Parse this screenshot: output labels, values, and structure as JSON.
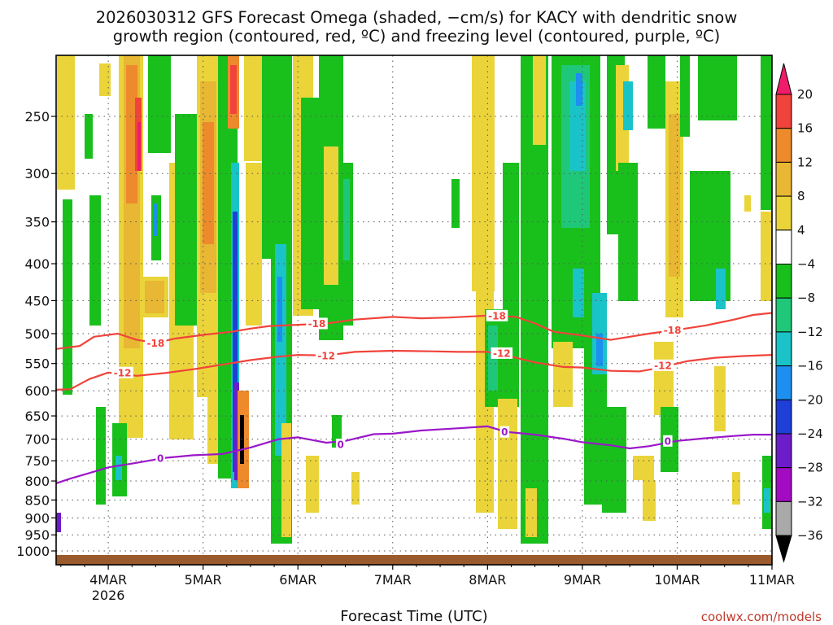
{
  "chart_data": {
    "type": "heatmap",
    "title_line1": "2026030312 GFS Forecast Omega (shaded, −cm/s) for KACY with dendritic snow",
    "title_line2": "growth region (contoured, red, ºC) and freezing level (contoured, purple, ºC)",
    "xlabel": "Forecast Time (UTC)",
    "credit": "coolwx.com/models",
    "x_ticks": [
      {
        "label": "4MAR",
        "sub": "2026",
        "day": 4
      },
      {
        "label": "5MAR",
        "sub": "",
        "day": 5
      },
      {
        "label": "6MAR",
        "sub": "",
        "day": 6
      },
      {
        "label": "7MAR",
        "sub": "",
        "day": 7
      },
      {
        "label": "8MAR",
        "sub": "",
        "day": 8
      },
      {
        "label": "9MAR",
        "sub": "",
        "day": 9
      },
      {
        "label": "10MAR",
        "sub": "",
        "day": 10
      },
      {
        "label": "11MAR",
        "sub": "",
        "day": 11
      }
    ],
    "xlim": [
      3.45,
      11
    ],
    "y_axis_unit": "hPa",
    "y_ticks": [
      250,
      300,
      350,
      400,
      450,
      500,
      550,
      600,
      650,
      700,
      750,
      800,
      850,
      900,
      950,
      1000
    ],
    "ylim": [
      200,
      1020
    ],
    "colorbar": {
      "labels": [
        "20",
        "16",
        "12",
        "8",
        "4",
        "−4",
        "−8",
        "−12",
        "−16",
        "−20",
        "−24",
        "−28",
        "−32",
        "−36"
      ],
      "colors": [
        "#ee1c69",
        "#f0433b",
        "#ed8a2c",
        "#e8b733",
        "#ead43a",
        "#ffffff",
        "#19c01c",
        "#1ec878",
        "#19c3c8",
        "#1c8ff0",
        "#1f3fd9",
        "#6c1cc9",
        "#a20bc2",
        "#a9a9a9",
        "#000000"
      ]
    },
    "contours": [
      {
        "name": "-18",
        "color": "#f0433b",
        "points": [
          [
            3.45,
            525
          ],
          [
            3.7,
            520
          ],
          [
            3.85,
            505
          ],
          [
            4.1,
            500
          ],
          [
            4.3,
            510
          ],
          [
            4.5,
            515
          ],
          [
            4.7,
            508
          ],
          [
            5.0,
            502
          ],
          [
            5.3,
            497
          ],
          [
            5.5,
            492
          ],
          [
            5.7,
            488
          ],
          [
            6.0,
            486
          ],
          [
            6.3,
            484
          ],
          [
            6.6,
            478
          ],
          [
            7.0,
            474
          ],
          [
            7.3,
            476
          ],
          [
            7.6,
            475
          ],
          [
            8.0,
            472
          ],
          [
            8.3,
            474
          ],
          [
            8.5,
            484
          ],
          [
            8.7,
            497
          ],
          [
            9.0,
            503
          ],
          [
            9.3,
            510
          ],
          [
            9.5,
            505
          ],
          [
            9.7,
            500
          ],
          [
            10.0,
            494
          ],
          [
            10.3,
            487
          ],
          [
            10.6,
            478
          ],
          [
            10.8,
            471
          ],
          [
            11.0,
            468
          ]
        ],
        "labels": [
          [
            4.5,
            515
          ],
          [
            6.2,
            484
          ],
          [
            8.1,
            472
          ],
          [
            9.95,
            494
          ]
        ]
      },
      {
        "name": "-12",
        "color": "#f0433b",
        "points": [
          [
            3.45,
            598
          ],
          [
            3.6,
            597
          ],
          [
            3.8,
            578
          ],
          [
            4.0,
            566
          ],
          [
            4.3,
            572
          ],
          [
            4.6,
            567
          ],
          [
            4.9,
            560
          ],
          [
            5.2,
            552
          ],
          [
            5.5,
            544
          ],
          [
            5.8,
            538
          ],
          [
            6.0,
            535
          ],
          [
            6.3,
            536
          ],
          [
            6.6,
            530
          ],
          [
            7.0,
            528
          ],
          [
            7.4,
            529
          ],
          [
            7.7,
            530
          ],
          [
            8.0,
            530
          ],
          [
            8.2,
            536
          ],
          [
            8.5,
            548
          ],
          [
            8.8,
            556
          ],
          [
            9.0,
            557
          ],
          [
            9.3,
            563
          ],
          [
            9.6,
            564
          ],
          [
            9.8,
            558
          ],
          [
            10.1,
            546
          ],
          [
            10.4,
            540
          ],
          [
            10.7,
            537
          ],
          [
            11.0,
            535
          ]
        ],
        "labels": [
          [
            4.15,
            566
          ],
          [
            6.3,
            536
          ],
          [
            8.15,
            532
          ],
          [
            9.85,
            553
          ]
        ]
      },
      {
        "name": "0",
        "color": "#9b17c9",
        "points": [
          [
            3.45,
            806
          ],
          [
            3.6,
            794
          ],
          [
            3.8,
            780
          ],
          [
            4.0,
            766
          ],
          [
            4.3,
            755
          ],
          [
            4.6,
            743
          ],
          [
            4.9,
            737
          ],
          [
            5.2,
            734
          ],
          [
            5.5,
            719
          ],
          [
            5.8,
            700
          ],
          [
            6.0,
            696
          ],
          [
            6.3,
            708
          ],
          [
            6.5,
            704
          ],
          [
            6.8,
            689
          ],
          [
            7.0,
            688
          ],
          [
            7.3,
            681
          ],
          [
            7.7,
            676
          ],
          [
            8.0,
            672
          ],
          [
            8.2,
            684
          ],
          [
            8.5,
            690
          ],
          [
            8.8,
            699
          ],
          [
            9.0,
            707
          ],
          [
            9.3,
            714
          ],
          [
            9.5,
            721
          ],
          [
            9.7,
            716
          ],
          [
            10.0,
            704
          ],
          [
            10.3,
            698
          ],
          [
            10.6,
            693
          ],
          [
            10.8,
            690
          ],
          [
            11.0,
            690
          ]
        ],
        "labels": [
          [
            4.55,
            744
          ],
          [
            6.45,
            712
          ],
          [
            8.18,
            684
          ],
          [
            9.9,
            704
          ]
        ]
      }
    ]
  }
}
